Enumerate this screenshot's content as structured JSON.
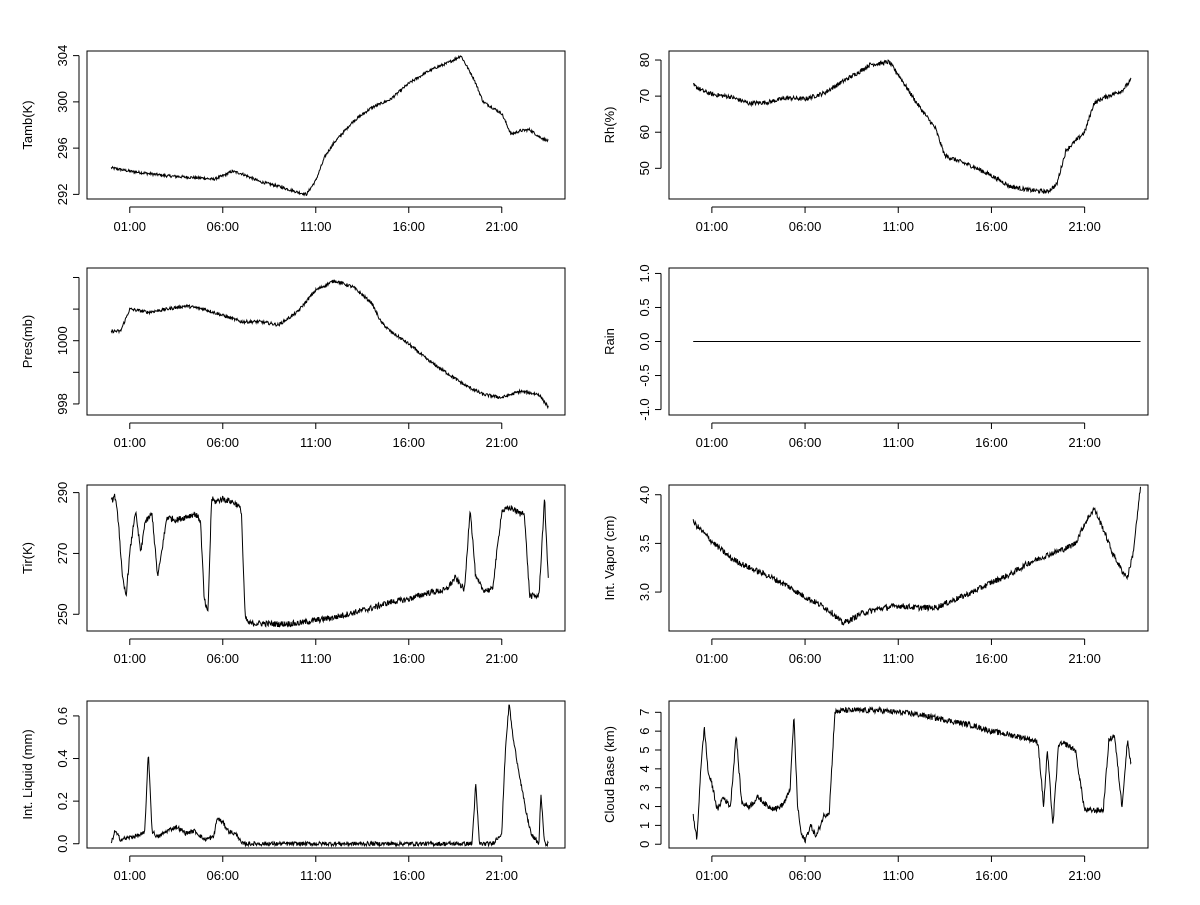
{
  "chart_data": [
    {
      "type": "line",
      "ylabel": "Tamb(K)",
      "xticks": [
        "01:00",
        "06:00",
        "11:00",
        "16:00",
        "21:00"
      ],
      "yticks": [
        292,
        296,
        300,
        304
      ],
      "ylim": [
        291.6,
        304.4
      ],
      "xlim": [
        -1.3,
        24.4
      ],
      "x": [
        0,
        1,
        2,
        3,
        4,
        5,
        5.5,
        6,
        6.5,
        7,
        8,
        9,
        10,
        10.5,
        11,
        11.5,
        12,
        13,
        14,
        15,
        16,
        17,
        17.5,
        18,
        18.5,
        18.8,
        19.5,
        20,
        21,
        21.5,
        22,
        22.5,
        23,
        23.5
      ],
      "y": [
        294.3,
        294.0,
        293.8,
        293.6,
        293.5,
        293.4,
        293.3,
        293.6,
        294.0,
        293.8,
        293.1,
        292.7,
        292.2,
        292.0,
        293.2,
        295.3,
        296.5,
        298.3,
        299.5,
        300.2,
        301.6,
        302.6,
        303.0,
        303.3,
        303.7,
        304.0,
        302.0,
        300.0,
        299.0,
        297.2,
        297.5,
        297.6,
        297.0,
        296.6
      ],
      "noise": 0.12
    },
    {
      "type": "line",
      "ylabel": "Rh(%)",
      "xticks": [
        "01:00",
        "06:00",
        "11:00",
        "16:00",
        "21:00"
      ],
      "yticks": [
        50,
        60,
        70,
        80
      ],
      "ylim": [
        41.5,
        82.5
      ],
      "xlim": [
        -1.3,
        24.4
      ],
      "x": [
        0,
        0.5,
        1,
        2,
        3,
        4,
        5,
        6,
        7,
        8,
        9,
        9.5,
        10,
        10.5,
        11,
        12,
        13,
        13.5,
        14,
        15,
        16,
        17,
        18,
        19,
        19.5,
        20,
        21,
        21.5,
        22,
        23,
        23.5
      ],
      "y": [
        73.0,
        71.5,
        70.5,
        69.8,
        68.0,
        68.3,
        69.5,
        69.2,
        70.8,
        74.0,
        77.0,
        78.8,
        79.0,
        79.5,
        76.0,
        68.0,
        61.0,
        53.5,
        52.5,
        50.5,
        48.0,
        45.0,
        44.0,
        43.5,
        45.5,
        55.0,
        60.0,
        68.0,
        69.5,
        71.5,
        74.5
      ],
      "noise": 0.6
    },
    {
      "type": "line",
      "ylabel": "Pres(mb)",
      "xticks": [
        "01:00",
        "06:00",
        "11:00",
        "16:00",
        "21:00"
      ],
      "yticks": [
        998,
        1000
      ],
      "yticks_full": [
        998,
        999,
        1000,
        1001,
        1002
      ],
      "ylim": [
        997.65,
        1002.3
      ],
      "xlim": [
        -1.3,
        24.4
      ],
      "x": [
        0,
        0.5,
        1,
        2,
        3,
        4,
        5,
        6,
        7,
        8,
        9,
        10,
        11,
        12,
        13,
        14,
        14.5,
        15,
        16,
        17,
        18,
        19,
        20,
        21,
        22,
        23,
        23.5
      ],
      "y": [
        1000.3,
        1000.3,
        1001.0,
        1000.9,
        1001.0,
        1001.1,
        1001.0,
        1000.8,
        1000.6,
        1000.6,
        1000.5,
        1000.9,
        1001.6,
        1001.9,
        1001.7,
        1001.2,
        1000.6,
        1000.3,
        999.9,
        999.4,
        999.0,
        998.6,
        998.3,
        998.2,
        998.4,
        998.3,
        997.9
      ],
      "noise": 0.05
    },
    {
      "type": "line",
      "ylabel": "Rain",
      "xticks": [
        "01:00",
        "06:00",
        "11:00",
        "16:00",
        "21:00"
      ],
      "yticks": [
        -1.0,
        -0.5,
        0.0,
        0.5,
        1.0
      ],
      "ytick_labels": [
        "-1.0",
        "-0.5",
        "0.0",
        "0.5",
        "1.0"
      ],
      "ylim": [
        -1.08,
        1.08
      ],
      "xlim": [
        -1.3,
        24.4
      ],
      "x": [
        0,
        24
      ],
      "y": [
        0,
        0
      ],
      "noise": 0
    },
    {
      "type": "line",
      "ylabel": "Tir(K)",
      "xticks": [
        "01:00",
        "06:00",
        "11:00",
        "16:00",
        "21:00"
      ],
      "yticks": [
        250,
        270,
        290
      ],
      "ylim": [
        244.5,
        292.5
      ],
      "xlim": [
        -1.3,
        24.4
      ],
      "x": [
        0,
        0.2,
        0.4,
        0.6,
        0.8,
        1,
        1.3,
        1.6,
        1.8,
        2.2,
        2.5,
        3,
        3.5,
        4,
        4.5,
        4.8,
        5,
        5.2,
        5.4,
        5.6,
        6,
        6.5,
        6.8,
        7.0,
        7.2,
        7.4,
        8,
        9,
        10,
        11,
        12,
        13,
        14,
        15,
        16,
        17,
        18,
        18.5,
        19,
        19.3,
        19.6,
        20,
        20.5,
        21,
        21.5,
        22,
        22.2,
        22.5,
        23,
        23.3,
        23.5
      ],
      "y": [
        287,
        289,
        280,
        262,
        256,
        270,
        284,
        270,
        280,
        283,
        262,
        282,
        281,
        282,
        283,
        281,
        255,
        250,
        288,
        287,
        288,
        287,
        286,
        284,
        249,
        247,
        247,
        246.8,
        247,
        248,
        249,
        250.5,
        252,
        254,
        255,
        257,
        258,
        262,
        258,
        285,
        262,
        258,
        258,
        284,
        285,
        283,
        284,
        256,
        256,
        288,
        262
      ],
      "noise": 1.0
    },
    {
      "type": "line",
      "ylabel": "Int. Vapor (cm)",
      "xticks": [
        "01:00",
        "06:00",
        "11:00",
        "16:00",
        "21:00"
      ],
      "yticks": [
        3.0,
        3.5,
        4.0
      ],
      "ytick_labels": [
        "3.0",
        "3.5",
        "4.0"
      ],
      "ylim": [
        2.6,
        4.1
      ],
      "xlim": [
        -1.3,
        24.4
      ],
      "x": [
        0,
        0.5,
        1,
        2,
        3,
        4,
        5,
        6,
        7,
        7.5,
        8,
        8.5,
        9,
        10,
        11,
        12,
        13,
        14,
        15,
        16,
        17,
        18,
        19,
        20,
        20.5,
        21,
        21.5,
        22,
        22.5,
        23,
        23.3,
        23.6,
        24
      ],
      "y": [
        3.72,
        3.62,
        3.52,
        3.35,
        3.25,
        3.17,
        3.07,
        2.95,
        2.85,
        2.78,
        2.68,
        2.72,
        2.78,
        2.83,
        2.86,
        2.84,
        2.84,
        2.92,
        3.0,
        3.1,
        3.18,
        3.3,
        3.38,
        3.45,
        3.5,
        3.7,
        3.86,
        3.65,
        3.4,
        3.22,
        3.15,
        3.4,
        4.08
      ],
      "noise": 0.03
    },
    {
      "type": "line",
      "ylabel": "Int. Liquid (mm)",
      "xticks": [
        "01:00",
        "06:00",
        "11:00",
        "16:00",
        "21:00"
      ],
      "yticks": [
        0.0,
        0.2,
        0.4,
        0.6
      ],
      "ytick_labels": [
        "0.0",
        "0.2",
        "0.4",
        "0.6"
      ],
      "ylim": [
        -0.02,
        0.67
      ],
      "xlim": [
        -1.3,
        24.4
      ],
      "x": [
        0,
        0.2,
        0.5,
        1,
        1.5,
        1.8,
        2,
        2.2,
        2.5,
        3,
        3.5,
        4,
        4.5,
        5,
        5.5,
        5.7,
        6,
        6.3,
        6.8,
        7,
        8,
        10,
        12,
        14,
        16,
        18,
        19,
        19.4,
        19.6,
        19.8,
        20,
        20.5,
        21,
        21.2,
        21.4,
        21.6,
        21.8,
        22,
        22.3,
        22.6,
        23,
        23.1,
        23.3,
        23.5
      ],
      "y": [
        0.0,
        0.06,
        0.02,
        0.03,
        0.04,
        0.05,
        0.43,
        0.06,
        0.03,
        0.06,
        0.08,
        0.05,
        0.06,
        0.02,
        0.03,
        0.12,
        0.1,
        0.06,
        0.04,
        0.0,
        0.0,
        0.0,
        0.0,
        0.0,
        0.0,
        0.0,
        0.0,
        0.0,
        0.28,
        0.0,
        0.0,
        0.0,
        0.05,
        0.45,
        0.66,
        0.5,
        0.4,
        0.3,
        0.15,
        0.04,
        0.0,
        0.24,
        0.0,
        0.0
      ],
      "noise": 0.01
    },
    {
      "type": "line",
      "ylabel": "Cloud Base (km)",
      "xticks": [
        "01:00",
        "06:00",
        "11:00",
        "16:00",
        "21:00"
      ],
      "yticks": [
        0,
        1,
        2,
        3,
        4,
        5,
        6,
        7
      ],
      "ylim": [
        -0.2,
        7.6
      ],
      "xlim": [
        -1.3,
        24.4
      ],
      "x": [
        0,
        0.2,
        0.4,
        0.6,
        0.8,
        1,
        1.3,
        1.6,
        2,
        2.3,
        2.6,
        3,
        3.5,
        4,
        4.5,
        4.8,
        5,
        5.2,
        5.4,
        5.6,
        5.8,
        6,
        6.3,
        6.6,
        7,
        7.3,
        7.6,
        8,
        9,
        10,
        11,
        12,
        13,
        14,
        15,
        16,
        17,
        18,
        18.5,
        18.8,
        19,
        19.3,
        19.6,
        20,
        20.5,
        21,
        21.5,
        22,
        22.3,
        22.6,
        23,
        23.3,
        23.5
      ],
      "y": [
        1.5,
        0.2,
        4.0,
        6.2,
        3.8,
        3.2,
        1.8,
        2.5,
        2.0,
        5.8,
        2.2,
        2.0,
        2.5,
        2.0,
        1.9,
        2.1,
        2.4,
        3.0,
        6.8,
        2.0,
        0.5,
        0.2,
        1.0,
        0.4,
        1.5,
        1.7,
        7.0,
        7.1,
        7.1,
        7.1,
        7.0,
        6.9,
        6.7,
        6.5,
        6.3,
        6.0,
        5.8,
        5.6,
        5.4,
        2.0,
        5.0,
        1.0,
        5.3,
        5.3,
        5.0,
        1.8,
        1.8,
        1.8,
        5.5,
        5.8,
        2.0,
        5.5,
        4.2
      ],
      "noise": 0.15
    }
  ]
}
